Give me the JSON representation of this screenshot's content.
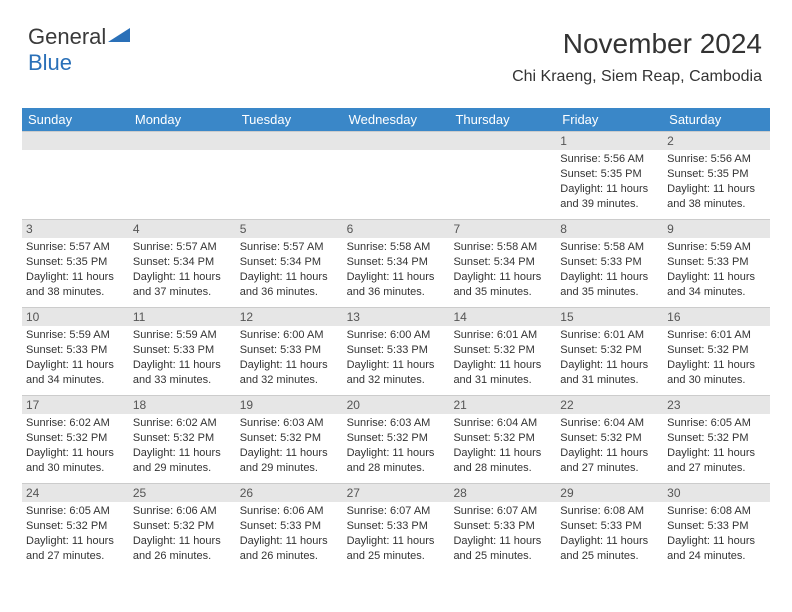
{
  "logo": {
    "text1": "General",
    "text2": "Blue"
  },
  "title": {
    "month": "November 2024",
    "location": "Chi Kraeng, Siem Reap, Cambodia"
  },
  "colors": {
    "header_bg": "#3a87c8",
    "header_text": "#ffffff",
    "daynum_bg": "#e6e6e6",
    "border": "#cccccc",
    "text": "#333333",
    "logo_blue": "#2a70b8"
  },
  "dayNames": [
    "Sunday",
    "Monday",
    "Tuesday",
    "Wednesday",
    "Thursday",
    "Friday",
    "Saturday"
  ],
  "weeks": [
    [
      {
        "n": "",
        "sr": "",
        "ss": "",
        "dl": ""
      },
      {
        "n": "",
        "sr": "",
        "ss": "",
        "dl": ""
      },
      {
        "n": "",
        "sr": "",
        "ss": "",
        "dl": ""
      },
      {
        "n": "",
        "sr": "",
        "ss": "",
        "dl": ""
      },
      {
        "n": "",
        "sr": "",
        "ss": "",
        "dl": ""
      },
      {
        "n": "1",
        "sr": "5:56 AM",
        "ss": "5:35 PM",
        "dl": "11 hours and 39 minutes."
      },
      {
        "n": "2",
        "sr": "5:56 AM",
        "ss": "5:35 PM",
        "dl": "11 hours and 38 minutes."
      }
    ],
    [
      {
        "n": "3",
        "sr": "5:57 AM",
        "ss": "5:35 PM",
        "dl": "11 hours and 38 minutes."
      },
      {
        "n": "4",
        "sr": "5:57 AM",
        "ss": "5:34 PM",
        "dl": "11 hours and 37 minutes."
      },
      {
        "n": "5",
        "sr": "5:57 AM",
        "ss": "5:34 PM",
        "dl": "11 hours and 36 minutes."
      },
      {
        "n": "6",
        "sr": "5:58 AM",
        "ss": "5:34 PM",
        "dl": "11 hours and 36 minutes."
      },
      {
        "n": "7",
        "sr": "5:58 AM",
        "ss": "5:34 PM",
        "dl": "11 hours and 35 minutes."
      },
      {
        "n": "8",
        "sr": "5:58 AM",
        "ss": "5:33 PM",
        "dl": "11 hours and 35 minutes."
      },
      {
        "n": "9",
        "sr": "5:59 AM",
        "ss": "5:33 PM",
        "dl": "11 hours and 34 minutes."
      }
    ],
    [
      {
        "n": "10",
        "sr": "5:59 AM",
        "ss": "5:33 PM",
        "dl": "11 hours and 34 minutes."
      },
      {
        "n": "11",
        "sr": "5:59 AM",
        "ss": "5:33 PM",
        "dl": "11 hours and 33 minutes."
      },
      {
        "n": "12",
        "sr": "6:00 AM",
        "ss": "5:33 PM",
        "dl": "11 hours and 32 minutes."
      },
      {
        "n": "13",
        "sr": "6:00 AM",
        "ss": "5:33 PM",
        "dl": "11 hours and 32 minutes."
      },
      {
        "n": "14",
        "sr": "6:01 AM",
        "ss": "5:32 PM",
        "dl": "11 hours and 31 minutes."
      },
      {
        "n": "15",
        "sr": "6:01 AM",
        "ss": "5:32 PM",
        "dl": "11 hours and 31 minutes."
      },
      {
        "n": "16",
        "sr": "6:01 AM",
        "ss": "5:32 PM",
        "dl": "11 hours and 30 minutes."
      }
    ],
    [
      {
        "n": "17",
        "sr": "6:02 AM",
        "ss": "5:32 PM",
        "dl": "11 hours and 30 minutes."
      },
      {
        "n": "18",
        "sr": "6:02 AM",
        "ss": "5:32 PM",
        "dl": "11 hours and 29 minutes."
      },
      {
        "n": "19",
        "sr": "6:03 AM",
        "ss": "5:32 PM",
        "dl": "11 hours and 29 minutes."
      },
      {
        "n": "20",
        "sr": "6:03 AM",
        "ss": "5:32 PM",
        "dl": "11 hours and 28 minutes."
      },
      {
        "n": "21",
        "sr": "6:04 AM",
        "ss": "5:32 PM",
        "dl": "11 hours and 28 minutes."
      },
      {
        "n": "22",
        "sr": "6:04 AM",
        "ss": "5:32 PM",
        "dl": "11 hours and 27 minutes."
      },
      {
        "n": "23",
        "sr": "6:05 AM",
        "ss": "5:32 PM",
        "dl": "11 hours and 27 minutes."
      }
    ],
    [
      {
        "n": "24",
        "sr": "6:05 AM",
        "ss": "5:32 PM",
        "dl": "11 hours and 27 minutes."
      },
      {
        "n": "25",
        "sr": "6:06 AM",
        "ss": "5:32 PM",
        "dl": "11 hours and 26 minutes."
      },
      {
        "n": "26",
        "sr": "6:06 AM",
        "ss": "5:33 PM",
        "dl": "11 hours and 26 minutes."
      },
      {
        "n": "27",
        "sr": "6:07 AM",
        "ss": "5:33 PM",
        "dl": "11 hours and 25 minutes."
      },
      {
        "n": "28",
        "sr": "6:07 AM",
        "ss": "5:33 PM",
        "dl": "11 hours and 25 minutes."
      },
      {
        "n": "29",
        "sr": "6:08 AM",
        "ss": "5:33 PM",
        "dl": "11 hours and 25 minutes."
      },
      {
        "n": "30",
        "sr": "6:08 AM",
        "ss": "5:33 PM",
        "dl": "11 hours and 24 minutes."
      }
    ]
  ],
  "labels": {
    "sunrise": "Sunrise:",
    "sunset": "Sunset:",
    "daylight": "Daylight:"
  }
}
